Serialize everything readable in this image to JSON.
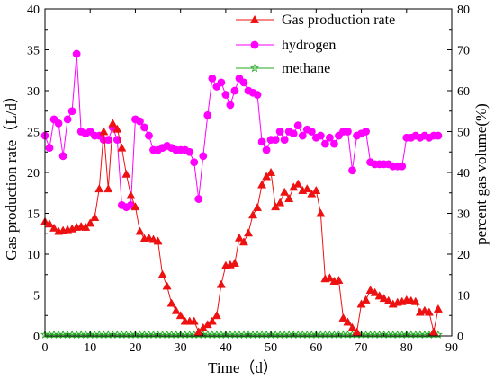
{
  "chart_data": {
    "type": "line",
    "xlabel": "Time（d）",
    "ylabel_left": "Gas production rate（L/d）",
    "ylabel_right": "percent gas volume(%)",
    "xlim": [
      0,
      90
    ],
    "ylim_left": [
      0,
      40
    ],
    "ylim_right": [
      0,
      80
    ],
    "x_ticks": [
      "0",
      "10",
      "20",
      "30",
      "40",
      "50",
      "60",
      "70",
      "80",
      "90"
    ],
    "y_left_ticks": [
      "0",
      "5",
      "10",
      "15",
      "20",
      "25",
      "30",
      "35",
      "40"
    ],
    "y_right_ticks": [
      "0",
      "10",
      "20",
      "30",
      "40",
      "50",
      "60",
      "70",
      "80"
    ],
    "legend_position": "top-right",
    "grid": false,
    "series": [
      {
        "name": "Gas production rate",
        "axis": "left",
        "color": "#ee1111",
        "marker": "triangle",
        "x": [
          0,
          1,
          2,
          3,
          4,
          5,
          6,
          7,
          8,
          9,
          10,
          11,
          12,
          13,
          14,
          15,
          16,
          17,
          18,
          19,
          20,
          21,
          22,
          23,
          24,
          25,
          26,
          27,
          28,
          29,
          30,
          31,
          32,
          33,
          34,
          35,
          36,
          37,
          38,
          39,
          40,
          41,
          42,
          43,
          44,
          45,
          46,
          47,
          48,
          49,
          50,
          51,
          52,
          53,
          54,
          55,
          56,
          57,
          58,
          59,
          60,
          61,
          62,
          63,
          64,
          65,
          66,
          67,
          68,
          69,
          70,
          71,
          72,
          73,
          74,
          75,
          76,
          77,
          78,
          79,
          80,
          81,
          82,
          83,
          84,
          85,
          86,
          87
        ],
        "values": [
          14,
          13.7,
          13.2,
          12.8,
          12.9,
          13.0,
          13.1,
          13.3,
          13.4,
          13.3,
          13.8,
          14.5,
          18,
          25,
          18,
          26,
          25.3,
          23,
          19.8,
          17.2,
          15.8,
          12.8,
          11.9,
          12.0,
          11.8,
          11.6,
          7.5,
          6.1,
          4,
          3.1,
          2.5,
          1.8,
          1.8,
          1.8,
          0.5,
          1,
          1.4,
          1.8,
          2.5,
          6.3,
          8.6,
          8.7,
          8.9,
          12,
          11.5,
          12.6,
          14.8,
          15.7,
          18.5,
          19.5,
          20,
          15.8,
          16.3,
          17.6,
          16.8,
          18.2,
          18.6,
          17.8,
          18.0,
          17.4,
          17.8,
          15,
          7,
          7.1,
          6.7,
          6.8,
          2.2,
          1.7,
          1.0,
          0.5,
          3.9,
          4.4,
          5.6,
          5.3,
          4.9,
          4.6,
          4.3,
          3.9,
          4.1,
          4.2,
          4.4,
          4.3,
          4.2,
          2.9,
          3.1,
          2.9,
          0.5,
          3.3
        ]
      },
      {
        "name": "hydrogen",
        "axis": "right",
        "color": "#ff00ff",
        "marker": "circle",
        "x": [
          0,
          1,
          2,
          3,
          4,
          5,
          6,
          7,
          8,
          9,
          10,
          11,
          12,
          13,
          14,
          15,
          16,
          17,
          18,
          19,
          20,
          21,
          22,
          23,
          24,
          25,
          26,
          27,
          28,
          29,
          30,
          31,
          32,
          33,
          34,
          35,
          36,
          37,
          38,
          39,
          40,
          41,
          42,
          43,
          44,
          45,
          46,
          47,
          48,
          49,
          50,
          51,
          52,
          53,
          54,
          55,
          56,
          57,
          58,
          59,
          60,
          61,
          62,
          63,
          64,
          65,
          66,
          67,
          68,
          69,
          70,
          71,
          72,
          73,
          74,
          75,
          76,
          77,
          78,
          79,
          80,
          81,
          82,
          83,
          84,
          85,
          86,
          87
        ],
        "values": [
          49,
          46,
          53,
          52,
          44,
          53,
          55,
          69,
          50,
          49.5,
          50,
          49,
          49,
          48,
          48,
          51,
          48,
          32,
          31.5,
          32,
          53,
          52.5,
          51,
          49,
          45.5,
          45.5,
          46,
          46.5,
          46,
          45.5,
          45.5,
          45.5,
          45,
          42.5,
          33.5,
          44,
          54,
          63,
          61,
          62,
          59,
          56.5,
          60,
          63,
          62,
          60,
          59.5,
          59,
          47.5,
          45.5,
          48,
          48,
          50,
          48,
          50,
          49.5,
          51.5,
          49,
          50.5,
          50,
          48.5,
          49,
          47,
          48.5,
          47,
          49,
          50,
          50,
          40.5,
          49,
          49.5,
          50,
          42.5,
          42,
          42,
          42,
          42,
          41.5,
          41.5,
          41.5,
          48.5,
          48.5,
          49,
          48.5,
          49,
          48.5,
          49,
          49
        ]
      },
      {
        "name": "methane",
        "axis": "right",
        "color": "#22aa22",
        "marker": "star",
        "x": [
          0,
          1,
          2,
          3,
          4,
          5,
          6,
          7,
          8,
          9,
          10,
          11,
          12,
          13,
          14,
          15,
          16,
          17,
          18,
          19,
          20,
          21,
          22,
          23,
          24,
          25,
          26,
          27,
          28,
          29,
          30,
          31,
          32,
          33,
          34,
          35,
          36,
          37,
          38,
          39,
          40,
          41,
          42,
          43,
          44,
          45,
          46,
          47,
          48,
          49,
          50,
          51,
          52,
          53,
          54,
          55,
          56,
          57,
          58,
          59,
          60,
          61,
          62,
          63,
          64,
          65,
          66,
          67,
          68,
          69,
          70,
          71,
          72,
          73,
          74,
          75,
          76,
          77,
          78,
          79,
          80,
          81,
          82,
          83,
          84,
          85,
          86,
          87
        ],
        "values": [
          0.3,
          0.3,
          0.3,
          0.3,
          0.3,
          0.3,
          0.3,
          0.3,
          0.3,
          0.3,
          0.3,
          0.3,
          0.3,
          0.3,
          0.3,
          0.3,
          0.3,
          0.3,
          0.3,
          0.3,
          0.3,
          0.3,
          0.3,
          0.3,
          0.3,
          0.3,
          0.3,
          0.3,
          0.3,
          0.3,
          0.3,
          0.3,
          0.3,
          0.3,
          0.3,
          0.3,
          0.3,
          0.3,
          0.3,
          0.3,
          0.3,
          0.3,
          0.3,
          0.3,
          0.3,
          0.3,
          0.3,
          0.3,
          0.3,
          0.3,
          0.3,
          0.3,
          0.3,
          0.3,
          0.3,
          0.3,
          0.3,
          0.3,
          0.3,
          0.3,
          0.3,
          0.3,
          0.3,
          0.3,
          0.3,
          0.3,
          0.3,
          0.3,
          0.3,
          0.3,
          0.3,
          0.3,
          0.3,
          0.3,
          0.3,
          0.3,
          0.3,
          0.3,
          0.3,
          0.3,
          0.3,
          0.3,
          0.3,
          0.3,
          0.3,
          0.3,
          0.3,
          0.3
        ]
      }
    ]
  }
}
